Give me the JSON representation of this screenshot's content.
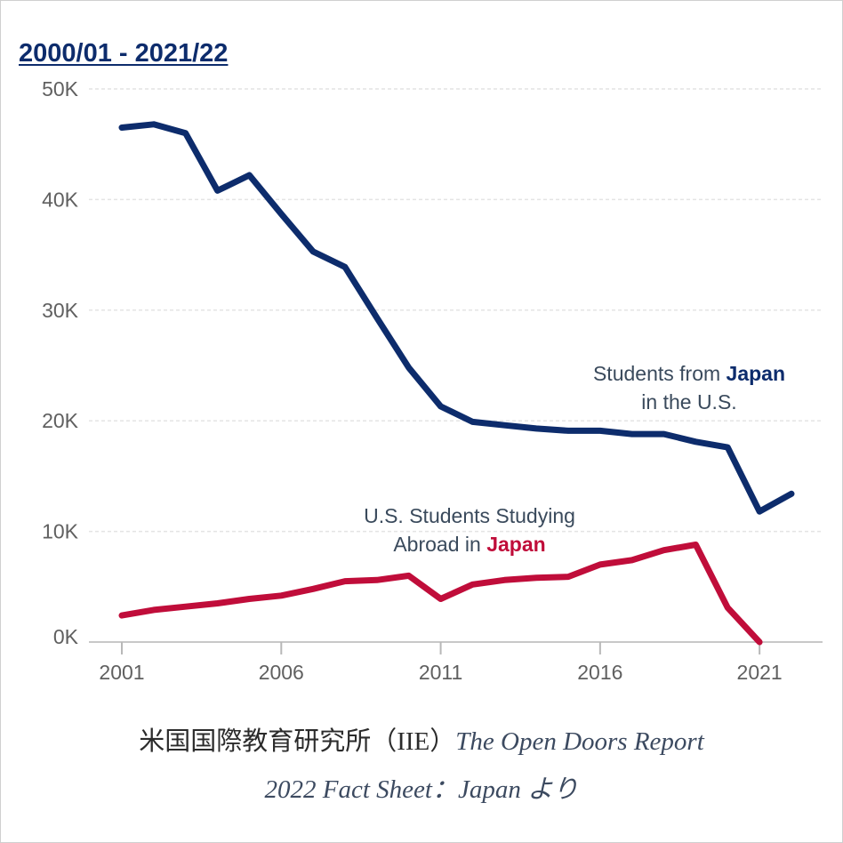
{
  "header": {
    "period": "2000/01 - 2021/22"
  },
  "chart_data": {
    "type": "line",
    "ylim": [
      0,
      50000
    ],
    "xlim": [
      2001,
      2022
    ],
    "yticks": [
      {
        "value": 0,
        "label": "0K"
      },
      {
        "value": 10000,
        "label": "10K"
      },
      {
        "value": 20000,
        "label": "20K"
      },
      {
        "value": 30000,
        "label": "30K"
      },
      {
        "value": 40000,
        "label": "40K"
      },
      {
        "value": 50000,
        "label": "50K"
      }
    ],
    "xticks": [
      {
        "value": 2001,
        "label": "2001"
      },
      {
        "value": 2006,
        "label": "2006"
      },
      {
        "value": 2011,
        "label": "2011"
      },
      {
        "value": 2016,
        "label": "2016"
      },
      {
        "value": 2021,
        "label": "2021"
      }
    ],
    "grid": true,
    "series": [
      {
        "color": "#0d2c6c",
        "x": [
          2001,
          2002,
          2003,
          2004,
          2005,
          2006,
          2007,
          2008,
          2009,
          2010,
          2011,
          2012,
          2013,
          2014,
          2015,
          2016,
          2017,
          2018,
          2019,
          2020,
          2021,
          2022
        ],
        "y": [
          46500,
          46800,
          46000,
          40800,
          42200,
          38700,
          35300,
          33900,
          29300,
          24800,
          21300,
          19900,
          19600,
          19300,
          19100,
          19100,
          18800,
          18800,
          18100,
          17600,
          11800,
          13400
        ]
      },
      {
        "color": "#c00d3a",
        "x": [
          2001,
          2002,
          2003,
          2004,
          2005,
          2006,
          2007,
          2008,
          2009,
          2010,
          2011,
          2012,
          2013,
          2014,
          2015,
          2016,
          2017,
          2018,
          2019,
          2020,
          2021
        ],
        "y": [
          2400,
          2900,
          3200,
          3500,
          3900,
          4200,
          4800,
          5500,
          5600,
          6000,
          3900,
          5200,
          5600,
          5800,
          5900,
          7000,
          7400,
          8300,
          8800,
          3100,
          0
        ]
      }
    ],
    "annotations": {
      "blue": {
        "prefix": "Students from ",
        "emphasis": "Japan",
        "line2": "in the U.S."
      },
      "red": {
        "line1": "U.S. Students Studying",
        "prefix": "Abroad in ",
        "emphasis": "Japan"
      }
    }
  },
  "source": {
    "line1_jp": "米国国際教育研究所（IIE）",
    "line1_en": "The Open Doors Report",
    "line2_en": "2022  Fact Sheet：Japan",
    "line2_jp": " より"
  }
}
